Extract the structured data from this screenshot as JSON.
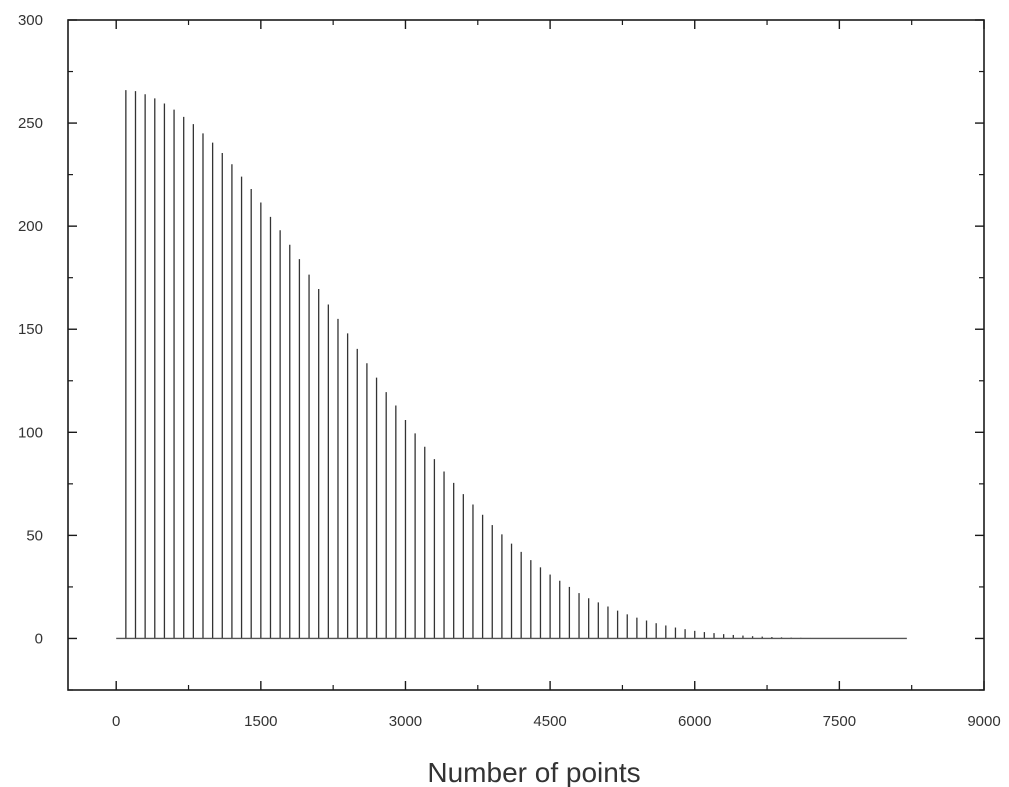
{
  "chart_data": {
    "type": "bar",
    "title": "",
    "xlabel": "Number of points",
    "ylabel": "",
    "xlim": [
      -500,
      9000
    ],
    "ylim": [
      -25,
      300
    ],
    "x_ticks": [
      "0",
      "1500",
      "3000",
      "4500",
      "6000",
      "7500",
      "9000"
    ],
    "y_ticks": [
      "0",
      "50",
      "100",
      "150",
      "200",
      "250",
      "300"
    ],
    "grid": false,
    "legend": "none",
    "baseline": {
      "x_start": 0,
      "x_end": 8200,
      "y": 0
    },
    "series": [
      {
        "x": [
          100,
          200,
          300,
          400,
          500,
          600,
          700,
          800,
          900,
          1000,
          1100,
          1200,
          1300,
          1400,
          1500,
          1600,
          1700,
          1800,
          1900,
          2000,
          2100,
          2200,
          2300,
          2400,
          2500,
          2600,
          2700,
          2800,
          2900,
          3000,
          3100,
          3200,
          3300,
          3400,
          3500,
          3600,
          3700,
          3800,
          3900,
          4000,
          4100,
          4200,
          4300,
          4400,
          4500,
          4600,
          4700,
          4800,
          4900,
          5000,
          5100,
          5200,
          5300,
          5400,
          5500,
          5600,
          5700,
          5800,
          5900,
          6000,
          6100,
          6200,
          6300,
          6400,
          6500,
          6600,
          6700,
          6800,
          6900,
          7000,
          7100,
          7200,
          7300,
          7400,
          7500,
          7600,
          7700,
          7800,
          7900,
          8000,
          8100,
          8200
        ],
        "values": [
          266,
          265.5,
          264,
          262,
          259.5,
          256.5,
          253,
          249.5,
          245,
          240.5,
          235.5,
          230,
          224,
          218,
          211.5,
          204.5,
          198,
          191,
          184,
          176.5,
          169.5,
          162,
          155,
          148,
          140.5,
          133.5,
          126.5,
          119.5,
          113,
          106,
          99.5,
          93,
          87,
          81,
          75.5,
          70,
          65,
          60,
          55,
          50.5,
          46,
          42,
          38,
          34.5,
          31,
          28,
          25,
          22,
          19.5,
          17.5,
          15.5,
          13.5,
          11.7,
          10.1,
          8.7,
          7.4,
          6.3,
          5.3,
          4.5,
          3.7,
          3.1,
          2.6,
          2.1,
          1.7,
          1.4,
          1.1,
          0.9,
          0.7,
          0.55,
          0.42,
          0.32,
          0.24,
          0.18,
          0.13,
          0.1,
          0.07,
          0.05,
          0.04,
          0.03,
          0.02,
          0.01,
          0.01
        ]
      }
    ]
  },
  "colors": {
    "frame": "#1a1a1a",
    "stem": "#333333",
    "baseline": "#555555"
  }
}
